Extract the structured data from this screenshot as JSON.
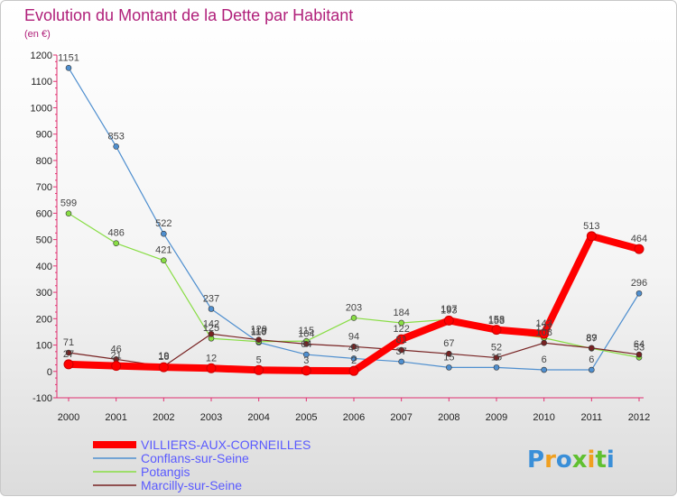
{
  "chart_data": {
    "type": "line",
    "title": "Evolution du Montant de la Dette par Habitant",
    "subtitle": "(en €)",
    "xlabel": "",
    "ylabel": "",
    "categories": [
      "2000",
      "2001",
      "2002",
      "2003",
      "2004",
      "2005",
      "2006",
      "2007",
      "2008",
      "2009",
      "2010",
      "2011",
      "2012"
    ],
    "ylim": [
      -100,
      1200
    ],
    "yticks": [
      -100,
      0,
      100,
      200,
      300,
      400,
      500,
      600,
      700,
      800,
      900,
      1000,
      1100,
      1200
    ],
    "grid": false,
    "legend_position": "bottom-left",
    "series": [
      {
        "name": "VILLIERS-AUX-CORNEILLES",
        "color": "#ff0000",
        "values": [
          27,
          21,
          16,
          12,
          5,
          3,
          2,
          122,
          193,
          158,
          143,
          513,
          464
        ]
      },
      {
        "name": "Conflans-sur-Seine",
        "color": "#4f8fcf",
        "values": [
          1151,
          853,
          522,
          237,
          110,
          64,
          49,
          37,
          15,
          15,
          6,
          6,
          296
        ]
      },
      {
        "name": "Potangis",
        "color": "#88dd44",
        "values": [
          599,
          486,
          421,
          125,
          113,
          115,
          203,
          184,
          197,
          153,
          127,
          87,
          53
        ]
      },
      {
        "name": "Marcilly-sur-Seine",
        "color": "#772222",
        "values": [
          71,
          46,
          19,
          142,
          120,
          104,
          94,
          81,
          67,
          52,
          108,
          89,
          64
        ]
      }
    ]
  },
  "brand": {
    "text": "Proxiti"
  }
}
